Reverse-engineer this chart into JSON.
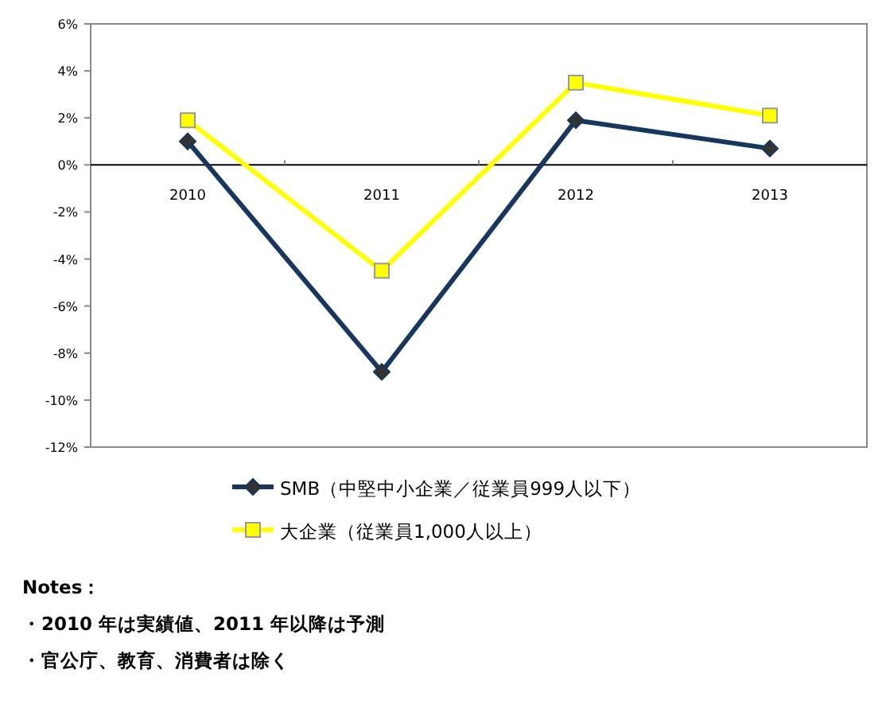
{
  "chart_data": {
    "type": "line",
    "categories": [
      "2010",
      "2011",
      "2012",
      "2013"
    ],
    "series": [
      {
        "name": "SMB（中堅中小企業／従業員999人以下）",
        "color": "#17375e",
        "marker": "diamond",
        "values": [
          1.0,
          -8.8,
          1.9,
          0.7
        ]
      },
      {
        "name": "大企業（従業員1,000人以上）",
        "color": "#ffff00",
        "marker": "square",
        "values": [
          1.9,
          -4.5,
          3.5,
          2.1
        ]
      }
    ],
    "ylim": [
      -12,
      6
    ],
    "yticks": [
      {
        "value": 6,
        "label": "6%"
      },
      {
        "value": 4,
        "label": "4%"
      },
      {
        "value": 2,
        "label": "2%"
      },
      {
        "value": 0,
        "label": "0%"
      },
      {
        "value": -2,
        "label": "-2%"
      },
      {
        "value": -4,
        "label": "-4%"
      },
      {
        "value": -6,
        "label": "-6%"
      },
      {
        "value": -8,
        "label": "-8%"
      },
      {
        "value": -10,
        "label": "-10%"
      },
      {
        "value": -12,
        "label": "-12%"
      }
    ],
    "legend": "bottom",
    "annotations": [
      "Notes：",
      "・2010 年は実績値、2011 年以降は予測",
      "・官公庁、教育、消費者は除く"
    ]
  }
}
